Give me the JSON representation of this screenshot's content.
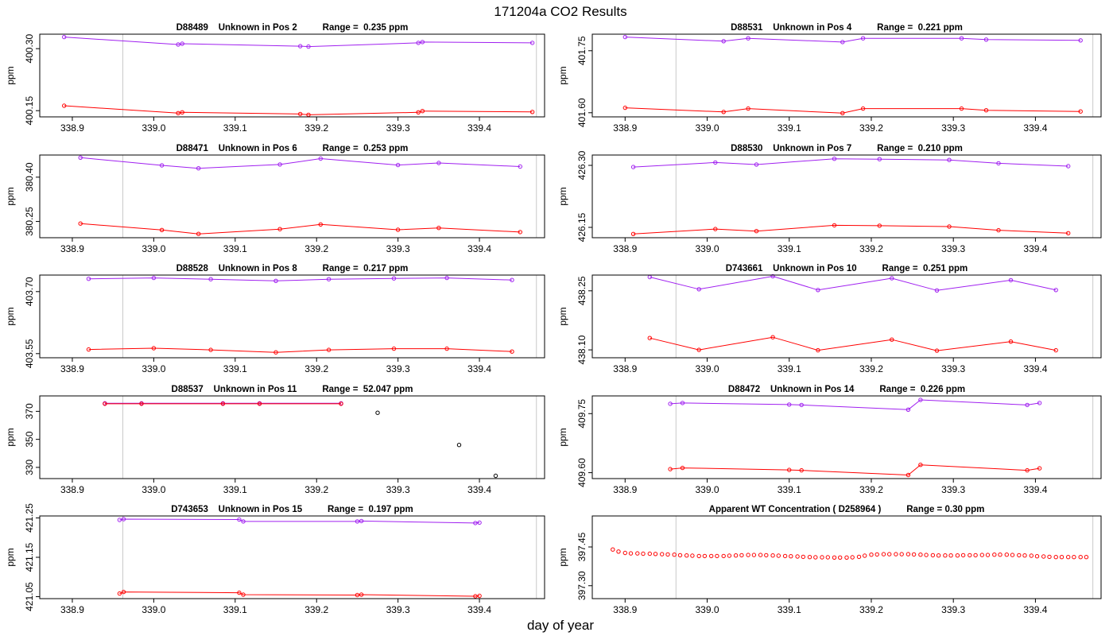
{
  "page": {
    "title": "171204a  CO2 Results",
    "xlabel": "day of year"
  },
  "colors": {
    "upper_series": "#a020f0",
    "lower_series": "#ff0000",
    "black_points": "#000000",
    "vline": "#c8c8c8",
    "axis": "#000000"
  },
  "chart_data": [
    {
      "type": "line",
      "title": "D88489    Unknown in Pos 2          Range =  0.235 ppm",
      "ylabel": "ppm",
      "xlim": [
        338.86,
        339.48
      ],
      "ylim": [
        400.135,
        400.335
      ],
      "xticks": [
        "338.9",
        "339.0",
        "339.1",
        "339.2",
        "339.3",
        "339.4"
      ],
      "yticks": [
        {
          "v": 400.15,
          "label": "400.15"
        },
        {
          "v": 400.3,
          "label": "400.30"
        }
      ],
      "vlines": [
        338.962,
        339.47
      ],
      "series": [
        {
          "color": "upper",
          "x": [
            338.89,
            339.03,
            339.035,
            339.18,
            339.19,
            339.325,
            339.33,
            339.465
          ],
          "y": [
            400.328,
            400.31,
            400.312,
            400.306,
            400.305,
            400.314,
            400.316,
            400.314
          ]
        },
        {
          "color": "lower",
          "x": [
            338.89,
            339.03,
            339.035,
            339.18,
            339.19,
            339.325,
            339.33,
            339.465
          ],
          "y": [
            400.162,
            400.144,
            400.146,
            400.142,
            400.14,
            400.146,
            400.149,
            400.147
          ]
        }
      ]
    },
    {
      "type": "line",
      "title": "D88531    Unknown in Pos 4          Range =  0.221 ppm",
      "ylabel": "ppm",
      "xlim": [
        338.86,
        339.48
      ],
      "ylim": [
        401.59,
        401.79
      ],
      "xticks": [
        "338.9",
        "339.0",
        "339.1",
        "339.2",
        "339.3",
        "339.4"
      ],
      "yticks": [
        {
          "v": 401.6,
          "label": "401.60"
        },
        {
          "v": 401.75,
          "label": "401.75"
        }
      ],
      "vlines": [
        338.962,
        339.47
      ],
      "series": [
        {
          "color": "upper",
          "x": [
            338.9,
            339.02,
            339.05,
            339.165,
            339.19,
            339.31,
            339.34,
            339.455
          ],
          "y": [
            401.783,
            401.773,
            401.78,
            401.771,
            401.78,
            401.78,
            401.777,
            401.775
          ]
        },
        {
          "color": "lower",
          "x": [
            338.9,
            339.02,
            339.05,
            339.165,
            339.19,
            339.31,
            339.34,
            339.455
          ],
          "y": [
            401.612,
            401.602,
            401.61,
            401.599,
            401.61,
            401.61,
            401.606,
            401.603
          ]
        }
      ]
    },
    {
      "type": "line",
      "title": "D88471    Unknown in Pos 6          Range =  0.253 ppm",
      "ylabel": "ppm",
      "xlim": [
        338.86,
        339.48
      ],
      "ylim": [
        380.195,
        380.475
      ],
      "xticks": [
        "338.9",
        "339.0",
        "339.1",
        "339.2",
        "339.3",
        "339.4"
      ],
      "yticks": [
        {
          "v": 380.25,
          "label": "380.25"
        },
        {
          "v": 380.4,
          "label": "380.40"
        }
      ],
      "vlines": [
        338.962,
        339.47
      ],
      "series": [
        {
          "color": "upper",
          "x": [
            338.91,
            339.01,
            339.055,
            339.155,
            339.205,
            339.3,
            339.35,
            339.45
          ],
          "y": [
            380.466,
            380.44,
            380.43,
            380.443,
            380.463,
            380.441,
            380.448,
            380.436
          ]
        },
        {
          "color": "lower",
          "x": [
            338.91,
            339.01,
            339.055,
            339.155,
            339.205,
            339.3,
            339.35,
            339.45
          ],
          "y": [
            380.243,
            380.221,
            380.208,
            380.224,
            380.24,
            380.222,
            380.228,
            380.214
          ]
        }
      ]
    },
    {
      "type": "line",
      "title": "D88530    Unknown in Pos 7          Range =  0.210 ppm",
      "ylabel": "ppm",
      "xlim": [
        338.86,
        339.48
      ],
      "ylim": [
        426.125,
        426.325
      ],
      "xticks": [
        "338.9",
        "339.0",
        "339.1",
        "339.2",
        "339.3",
        "339.4"
      ],
      "yticks": [
        {
          "v": 426.15,
          "label": "426.15"
        },
        {
          "v": 426.3,
          "label": "426.30"
        }
      ],
      "vlines": [
        338.962,
        339.47
      ],
      "series": [
        {
          "color": "upper",
          "x": [
            338.91,
            339.01,
            339.06,
            339.155,
            339.21,
            339.295,
            339.355,
            339.44
          ],
          "y": [
            426.296,
            426.307,
            426.302,
            426.316,
            426.315,
            426.313,
            426.305,
            426.298
          ]
        },
        {
          "color": "lower",
          "x": [
            338.91,
            339.01,
            339.06,
            339.155,
            339.21,
            339.295,
            339.355,
            339.44
          ],
          "y": [
            426.134,
            426.146,
            426.141,
            426.155,
            426.154,
            426.152,
            426.143,
            426.136
          ]
        }
      ]
    },
    {
      "type": "line",
      "title": "D88528    Unknown in Pos 8          Range =  0.217 ppm",
      "ylabel": "ppm",
      "xlim": [
        338.86,
        339.48
      ],
      "ylim": [
        403.54,
        403.74
      ],
      "xticks": [
        "338.9",
        "339.0",
        "339.1",
        "339.2",
        "339.3",
        "339.4"
      ],
      "yticks": [
        {
          "v": 403.55,
          "label": "403.55"
        },
        {
          "v": 403.7,
          "label": "403.70"
        }
      ],
      "vlines": [
        338.962,
        339.47
      ],
      "series": [
        {
          "color": "upper",
          "x": [
            338.92,
            339.0,
            339.07,
            339.15,
            339.215,
            339.295,
            339.36,
            339.44
          ],
          "y": [
            403.731,
            403.733,
            403.73,
            403.726,
            403.73,
            403.732,
            403.733,
            403.728
          ]
        },
        {
          "color": "lower",
          "x": [
            338.92,
            339.0,
            339.07,
            339.15,
            339.215,
            339.295,
            339.36,
            339.44
          ],
          "y": [
            403.56,
            403.563,
            403.559,
            403.553,
            403.559,
            403.562,
            403.562,
            403.555
          ]
        }
      ]
    },
    {
      "type": "line",
      "title": "D743661    Unknown in Pos 10          Range =  0.251 ppm",
      "ylabel": "ppm",
      "xlim": [
        338.86,
        339.48
      ],
      "ylim": [
        438.08,
        438.29
      ],
      "xticks": [
        "338.9",
        "339.0",
        "339.1",
        "339.2",
        "339.3",
        "339.4"
      ],
      "yticks": [
        {
          "v": 438.1,
          "label": "438.10"
        },
        {
          "v": 438.25,
          "label": "438.25"
        }
      ],
      "vlines": [
        338.962,
        339.47
      ],
      "series": [
        {
          "color": "upper",
          "x": [
            338.93,
            338.99,
            339.08,
            339.135,
            339.225,
            339.28,
            339.37,
            339.425
          ],
          "y": [
            438.285,
            438.254,
            438.287,
            438.252,
            438.282,
            438.251,
            438.277,
            438.252
          ]
        },
        {
          "color": "lower",
          "x": [
            338.93,
            338.99,
            339.08,
            339.135,
            339.225,
            339.28,
            339.37,
            339.425
          ],
          "y": [
            438.13,
            438.1,
            438.132,
            438.099,
            438.126,
            438.098,
            438.121,
            438.099
          ]
        }
      ]
    },
    {
      "type": "line",
      "title": "D88537    Unknown in Pos 11          Range =  52.047 ppm",
      "ylabel": "ppm",
      "xlim": [
        338.86,
        339.48
      ],
      "ylim": [
        322,
        381
      ],
      "xticks": [
        "338.9",
        "339.0",
        "339.1",
        "339.2",
        "339.3",
        "339.4"
      ],
      "yticks": [
        {
          "v": 330,
          "label": "330"
        },
        {
          "v": 350,
          "label": "350"
        },
        {
          "v": 370,
          "label": "370"
        }
      ],
      "vlines": [
        338.962,
        339.47
      ],
      "series": [
        {
          "color": "upper",
          "x": [
            338.94,
            338.985,
            339.085,
            339.13,
            339.23
          ],
          "y": [
            375.7,
            375.7,
            375.7,
            375.7,
            375.7
          ]
        },
        {
          "color": "lower",
          "x": [
            338.94,
            338.985,
            339.085,
            339.13,
            339.23
          ],
          "y": [
            375.4,
            375.4,
            375.4,
            375.4,
            375.4
          ]
        },
        {
          "color": "black",
          "points_only": true,
          "x": [
            339.275,
            339.375,
            339.42
          ],
          "y": [
            369,
            346,
            324
          ]
        }
      ]
    },
    {
      "type": "line",
      "title": "D88472    Unknown in Pos 14          Range =  0.226 ppm",
      "ylabel": "ppm",
      "xlim": [
        338.86,
        339.48
      ],
      "ylim": [
        409.585,
        409.795
      ],
      "xticks": [
        "338.9",
        "339.0",
        "339.1",
        "339.2",
        "339.3",
        "339.4"
      ],
      "yticks": [
        {
          "v": 409.6,
          "label": "409.60"
        },
        {
          "v": 409.75,
          "label": "409.75"
        }
      ],
      "vlines": [
        338.962,
        339.47
      ],
      "series": [
        {
          "color": "upper",
          "x": [
            338.955,
            338.97,
            339.1,
            339.115,
            339.245,
            339.26,
            339.39,
            339.405
          ],
          "y": [
            409.775,
            409.777,
            409.773,
            409.772,
            409.76,
            409.785,
            409.772,
            409.777
          ]
        },
        {
          "color": "lower",
          "x": [
            338.955,
            338.97,
            339.1,
            339.115,
            339.245,
            339.26,
            339.39,
            339.405
          ],
          "y": [
            409.609,
            409.612,
            409.607,
            409.606,
            409.594,
            409.62,
            409.606,
            409.611
          ]
        }
      ]
    },
    {
      "type": "line",
      "title": "D743653    Unknown in Pos 15          Range =  0.197 ppm",
      "ylabel": "ppm",
      "xlim": [
        338.86,
        339.48
      ],
      "ylim": [
        421.045,
        421.255
      ],
      "xticks": [
        "338.9",
        "339.0",
        "339.1",
        "339.2",
        "339.3",
        "339.4"
      ],
      "yticks": [
        {
          "v": 421.05,
          "label": "421.05"
        },
        {
          "v": 421.15,
          "label": "421.15"
        },
        {
          "v": 421.25,
          "label": "421.25"
        }
      ],
      "vlines": [
        338.962,
        339.47
      ],
      "series": [
        {
          "color": "upper",
          "x": [
            338.958,
            338.963,
            339.105,
            339.11,
            339.25,
            339.255,
            339.395,
            339.4
          ],
          "y": [
            421.245,
            421.247,
            421.246,
            421.241,
            421.241,
            421.242,
            421.237,
            421.238
          ]
        },
        {
          "color": "lower",
          "x": [
            338.958,
            338.963,
            339.105,
            339.11,
            339.25,
            339.255,
            339.395,
            339.4
          ],
          "y": [
            421.058,
            421.062,
            421.06,
            421.055,
            421.054,
            421.055,
            421.051,
            421.052
          ]
        }
      ]
    },
    {
      "type": "scatter",
      "title": "Apparent WT Concentration ( D258964 )          Range = 0.30 ppm",
      "ylabel": "ppm",
      "xlim": [
        338.86,
        339.48
      ],
      "ylim": [
        397.25,
        397.57
      ],
      "xticks": [
        "338.9",
        "339.0",
        "339.1",
        "339.2",
        "339.3",
        "339.4"
      ],
      "yticks": [
        {
          "v": 397.3,
          "label": "397.30"
        },
        {
          "v": 397.45,
          "label": "397.45"
        }
      ],
      "vlines": [
        338.962,
        339.47
      ],
      "series": [
        {
          "color": "lower",
          "points_only": true,
          "x": [
            338.885,
            338.892,
            338.9,
            338.907,
            338.915,
            338.922,
            338.93,
            338.937,
            338.945,
            338.952,
            338.96,
            338.967,
            338.975,
            338.982,
            338.99,
            338.997,
            339.005,
            339.012,
            339.02,
            339.027,
            339.035,
            339.042,
            339.05,
            339.057,
            339.065,
            339.072,
            339.08,
            339.087,
            339.095,
            339.102,
            339.11,
            339.117,
            339.125,
            339.132,
            339.14,
            339.147,
            339.155,
            339.162,
            339.17,
            339.177,
            339.185,
            339.192,
            339.2,
            339.207,
            339.215,
            339.222,
            339.23,
            339.237,
            339.245,
            339.252,
            339.26,
            339.267,
            339.275,
            339.282,
            339.29,
            339.297,
            339.305,
            339.312,
            339.32,
            339.327,
            339.335,
            339.342,
            339.35,
            339.357,
            339.365,
            339.372,
            339.38,
            339.387,
            339.395,
            339.402,
            339.41,
            339.417,
            339.425,
            339.432,
            339.44,
            339.447,
            339.455,
            339.462
          ],
          "y": [
            397.44,
            397.432,
            397.427,
            397.425,
            397.425,
            397.424,
            397.424,
            397.423,
            397.422,
            397.421,
            397.42,
            397.418,
            397.417,
            397.416,
            397.415,
            397.415,
            397.415,
            397.415,
            397.415,
            397.416,
            397.417,
            397.418,
            397.419,
            397.419,
            397.419,
            397.418,
            397.417,
            397.416,
            397.415,
            397.414,
            397.413,
            397.412,
            397.411,
            397.41,
            397.41,
            397.41,
            397.409,
            397.409,
            397.409,
            397.41,
            397.412,
            397.416,
            397.42,
            397.421,
            397.422,
            397.422,
            397.422,
            397.422,
            397.422,
            397.421,
            397.42,
            397.419,
            397.418,
            397.417,
            397.417,
            397.417,
            397.417,
            397.418,
            397.418,
            397.418,
            397.419,
            397.419,
            397.42,
            397.42,
            397.42,
            397.419,
            397.418,
            397.417,
            397.416,
            397.414,
            397.413,
            397.412,
            397.411,
            397.411,
            397.411,
            397.411,
            397.411,
            397.411
          ]
        }
      ]
    }
  ]
}
